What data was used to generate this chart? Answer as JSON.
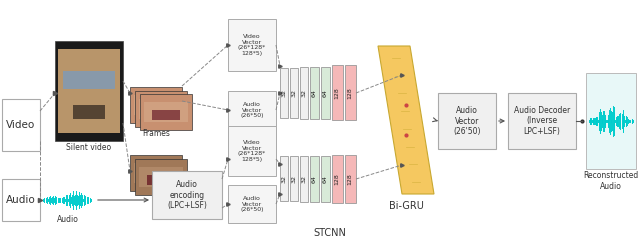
{
  "bg_color": "#ffffff",
  "fig_width": 6.4,
  "fig_height": 2.41,
  "dpi": 100,
  "conv_labels_top": [
    "32",
    "32",
    "32",
    "64",
    "64",
    "128",
    "128"
  ],
  "conv_labels_bot": [
    "32",
    "32",
    "32",
    "64",
    "64",
    "128",
    "128"
  ],
  "conv_colors": [
    "#f0f0f0",
    "#f0f0f0",
    "#f0f0f0",
    "#d8ead8",
    "#d8ead8",
    "#f5b8b8",
    "#f5b8b8"
  ],
  "arrow_color": "#555555",
  "text_color": "#333333",
  "bigru_color": "#f5c860",
  "bigru_line_color": "#c8a830",
  "box_gray": "#eeeeee",
  "box_edge": "#aaaaaa",
  "cyan_wave": "#00cccc",
  "lip_brown": "#c8906a",
  "lip_dark": "#a07050",
  "face_dark": "#222222"
}
